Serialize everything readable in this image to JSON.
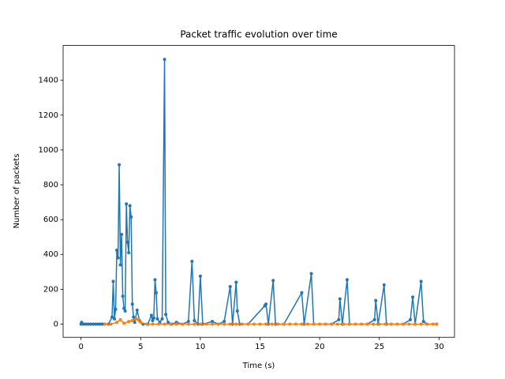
{
  "chart_data": {
    "type": "line",
    "title": "Packet traffic evolution over time",
    "xlabel": "Time (s)",
    "ylabel": "Number of packets",
    "xlim": [
      -1.5,
      31.3
    ],
    "ylim": [
      -76,
      1600
    ],
    "xticks": [
      0,
      5,
      10,
      15,
      20,
      25,
      30
    ],
    "yticks": [
      0,
      200,
      400,
      600,
      800,
      1000,
      1200,
      1400
    ],
    "series": [
      {
        "color": "#1f77b4",
        "x": [
          0,
          0.05,
          0.2,
          0.4,
          0.6,
          0.8,
          1.0,
          1.2,
          1.4,
          1.6,
          1.8,
          2.0,
          2.3,
          2.6,
          2.7,
          2.8,
          2.9,
          3.0,
          3.1,
          3.2,
          3.3,
          3.4,
          3.5,
          3.6,
          3.7,
          3.8,
          3.9,
          4.0,
          4.1,
          4.2,
          4.3,
          4.4,
          4.5,
          4.7,
          4.9,
          5.2,
          5.6,
          5.9,
          6.0,
          6.1,
          6.2,
          6.3,
          6.4,
          6.6,
          6.8,
          7.0,
          7.1,
          7.3,
          7.6,
          8.0,
          8.5,
          9.0,
          9.3,
          9.5,
          9.8,
          10.0,
          10.2,
          11.0,
          11.5,
          12.0,
          12.5,
          12.7,
          13.0,
          13.1,
          13.3,
          14.0,
          15.4,
          15.5,
          15.7,
          16.1,
          16.3,
          17.0,
          18.5,
          18.7,
          19.3,
          19.5,
          21.0,
          21.6,
          21.7,
          21.9,
          22.3,
          22.5,
          24.0,
          24.6,
          24.7,
          24.9,
          25.4,
          25.6,
          27.0,
          27.6,
          27.8,
          28.0,
          28.5,
          28.7,
          29.0,
          29.8
        ],
        "values": [
          0,
          10,
          0,
          0,
          0,
          0,
          0,
          0,
          0,
          0,
          0,
          0,
          0,
          40,
          245,
          30,
          85,
          425,
          380,
          915,
          340,
          515,
          160,
          90,
          75,
          690,
          470,
          410,
          680,
          615,
          115,
          40,
          10,
          80,
          20,
          0,
          0,
          50,
          20,
          35,
          255,
          180,
          30,
          10,
          30,
          1520,
          55,
          10,
          0,
          10,
          0,
          15,
          360,
          20,
          0,
          275,
          0,
          15,
          0,
          15,
          215,
          0,
          240,
          75,
          0,
          0,
          105,
          115,
          0,
          250,
          0,
          0,
          180,
          0,
          290,
          0,
          0,
          25,
          145,
          0,
          255,
          0,
          0,
          25,
          135,
          0,
          225,
          0,
          0,
          25,
          155,
          0,
          245,
          15,
          0,
          0
        ]
      },
      {
        "color": "#ff7f0e",
        "x": [
          2.0,
          2.5,
          3.0,
          3.3,
          3.6,
          4.0,
          4.3,
          4.6,
          4.8,
          5.0,
          5.5,
          6,
          6.5,
          7,
          7.5,
          8,
          8.5,
          9,
          9.5,
          10,
          10.5,
          11,
          11.5,
          12,
          12.5,
          13,
          13.5,
          14,
          14.5,
          15,
          15.5,
          16,
          16.5,
          17,
          17.5,
          18,
          18.5,
          19,
          19.5,
          20,
          20.5,
          21,
          21.5,
          22,
          22.5,
          23,
          23.5,
          24,
          24.5,
          25,
          25.5,
          26,
          26.5,
          27,
          27.5,
          28,
          28.5,
          29,
          29.5,
          29.8
        ],
        "values": [
          0,
          0,
          10,
          25,
          5,
          15,
          20,
          30,
          25,
          10,
          0,
          0,
          0,
          0,
          0,
          0,
          0,
          0,
          0,
          0,
          0,
          0,
          0,
          0,
          0,
          0,
          0,
          0,
          0,
          0,
          0,
          0,
          0,
          0,
          0,
          0,
          0,
          0,
          0,
          0,
          0,
          0,
          0,
          0,
          0,
          0,
          0,
          0,
          0,
          0,
          0,
          0,
          0,
          0,
          0,
          0,
          0,
          0,
          0,
          0
        ]
      }
    ]
  }
}
